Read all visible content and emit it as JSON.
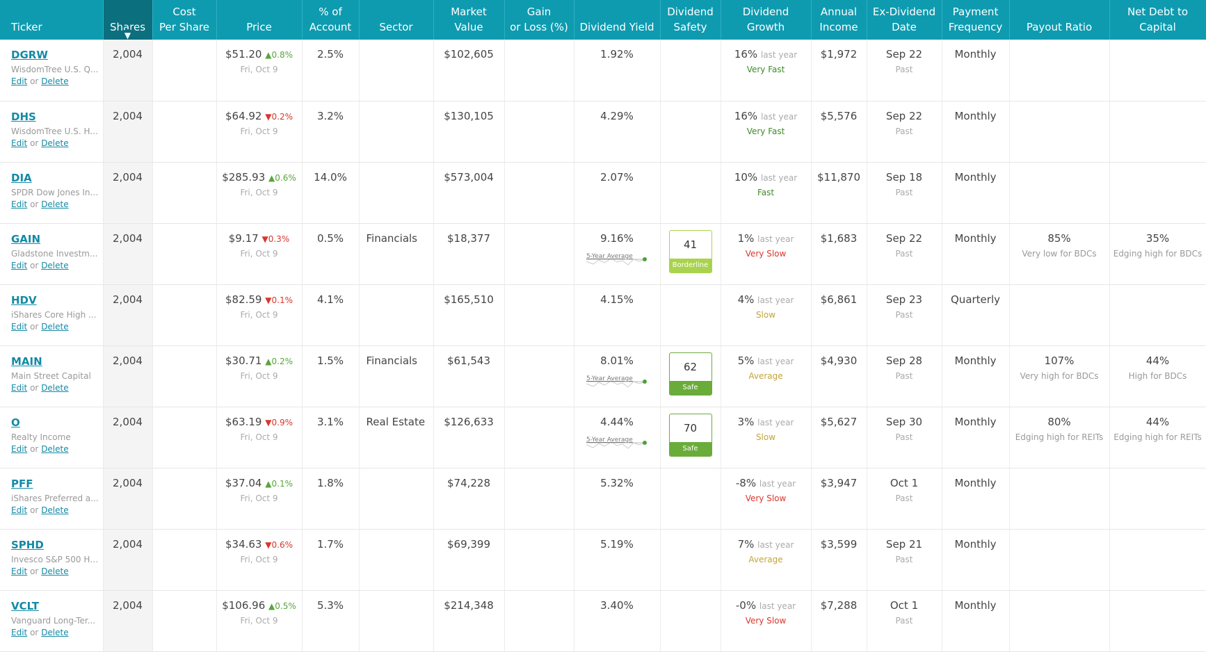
{
  "columns": [
    {
      "key": "ticker",
      "label": "Ticker"
    },
    {
      "key": "shares",
      "label": "Shares"
    },
    {
      "key": "cost",
      "label_lines": [
        "Cost",
        "Per Share"
      ]
    },
    {
      "key": "price",
      "label": "Price"
    },
    {
      "key": "pct",
      "label_lines": [
        "% of",
        "Account"
      ]
    },
    {
      "key": "sector",
      "label": "Sector"
    },
    {
      "key": "mv",
      "label_lines": [
        "Market",
        "Value"
      ]
    },
    {
      "key": "gain",
      "label_lines": [
        "Gain",
        "or Loss (%)"
      ]
    },
    {
      "key": "yield",
      "label": "Dividend Yield"
    },
    {
      "key": "safety",
      "label_lines": [
        "Dividend",
        "Safety"
      ]
    },
    {
      "key": "growth",
      "label_lines": [
        "Dividend",
        "Growth"
      ]
    },
    {
      "key": "income",
      "label_lines": [
        "Annual",
        "Income"
      ]
    },
    {
      "key": "exdiv",
      "label_lines": [
        "Ex-Dividend",
        "Date"
      ]
    },
    {
      "key": "freq",
      "label_lines": [
        "Payment",
        "Frequency"
      ]
    },
    {
      "key": "payout",
      "label": "Payout Ratio"
    },
    {
      "key": "debt",
      "label_lines": [
        "Net Debt to",
        "Capital"
      ]
    }
  ],
  "labels": {
    "edit": "Edit",
    "or": "or",
    "delete": "Delete",
    "last_year": "last year",
    "five_year_avg": "5-Year Average",
    "sort_arrow": "▼"
  },
  "colors": {
    "header": "#0e9bb0",
    "header_sorted": "#0b6f7e",
    "link": "#138aa6",
    "up": "#56a63b",
    "down": "#d9362c"
  },
  "rows": [
    {
      "ticker": "DGRW",
      "name": "WisdomTree U.S. Q...",
      "shares": "2,004",
      "price": "$51.20",
      "change": "0.8%",
      "dir": "up",
      "price_date": "Fri, Oct 9",
      "pct": "2.5%",
      "sector": "",
      "mv": "$102,605",
      "yield": "1.92%",
      "safety": null,
      "growth": "16%",
      "growth_rate": "Very Fast",
      "growth_class": "very-fast",
      "income": "$1,972",
      "exdiv": "Sep 22",
      "exdiv_status": "Past",
      "freq": "Monthly",
      "payout": "",
      "payout_note": "",
      "debt": "",
      "debt_note": ""
    },
    {
      "ticker": "DHS",
      "name": "WisdomTree U.S. H...",
      "shares": "2,004",
      "price": "$64.92",
      "change": "0.2%",
      "dir": "down",
      "price_date": "Fri, Oct 9",
      "pct": "3.2%",
      "sector": "",
      "mv": "$130,105",
      "yield": "4.29%",
      "safety": null,
      "growth": "16%",
      "growth_rate": "Very Fast",
      "growth_class": "very-fast",
      "income": "$5,576",
      "exdiv": "Sep 22",
      "exdiv_status": "Past",
      "freq": "Monthly",
      "payout": "",
      "payout_note": "",
      "debt": "",
      "debt_note": ""
    },
    {
      "ticker": "DIA",
      "name": "SPDR Dow Jones In...",
      "shares": "2,004",
      "price": "$285.93",
      "change": "0.6%",
      "dir": "up",
      "price_date": "Fri, Oct 9",
      "pct": "14.0%",
      "sector": "",
      "mv": "$573,004",
      "yield": "2.07%",
      "safety": null,
      "growth": "10%",
      "growth_rate": "Fast",
      "growth_class": "fast",
      "income": "$11,870",
      "exdiv": "Sep 18",
      "exdiv_status": "Past",
      "freq": "Monthly",
      "payout": "",
      "payout_note": "",
      "debt": "",
      "debt_note": ""
    },
    {
      "ticker": "GAIN",
      "name": "Gladstone Investm...",
      "shares": "2,004",
      "price": "$9.17",
      "change": "0.3%",
      "dir": "down",
      "price_date": "Fri, Oct 9",
      "pct": "0.5%",
      "sector": "Financials",
      "mv": "$18,377",
      "yield": "9.16%",
      "spark": true,
      "safety": {
        "score": "41",
        "label": "Borderline",
        "cls": "borderline"
      },
      "growth": "1%",
      "growth_rate": "Very Slow",
      "growth_class": "very-slow",
      "income": "$1,683",
      "exdiv": "Sep 22",
      "exdiv_status": "Past",
      "freq": "Monthly",
      "payout": "85%",
      "payout_note": "Very low for BDCs",
      "debt": "35%",
      "debt_note": "Edging high for BDCs"
    },
    {
      "ticker": "HDV",
      "name": "iShares Core High ...",
      "shares": "2,004",
      "price": "$82.59",
      "change": "0.1%",
      "dir": "down",
      "price_date": "Fri, Oct 9",
      "pct": "4.1%",
      "sector": "",
      "mv": "$165,510",
      "yield": "4.15%",
      "safety": null,
      "growth": "4%",
      "growth_rate": "Slow",
      "growth_class": "slow",
      "income": "$6,861",
      "exdiv": "Sep 23",
      "exdiv_status": "Past",
      "freq": "Quarterly",
      "payout": "",
      "payout_note": "",
      "debt": "",
      "debt_note": ""
    },
    {
      "ticker": "MAIN",
      "name": "Main Street Capital",
      "shares": "2,004",
      "price": "$30.71",
      "change": "0.2%",
      "dir": "up",
      "price_date": "Fri, Oct 9",
      "pct": "1.5%",
      "sector": "Financials",
      "mv": "$61,543",
      "yield": "8.01%",
      "spark": true,
      "safety": {
        "score": "62",
        "label": "Safe",
        "cls": "safe"
      },
      "growth": "5%",
      "growth_rate": "Average",
      "growth_class": "average",
      "income": "$4,930",
      "exdiv": "Sep 28",
      "exdiv_status": "Past",
      "freq": "Monthly",
      "payout": "107%",
      "payout_note": "Very high for BDCs",
      "debt": "44%",
      "debt_note": "High for BDCs"
    },
    {
      "ticker": "O",
      "name": "Realty Income",
      "shares": "2,004",
      "price": "$63.19",
      "change": "0.9%",
      "dir": "down",
      "price_date": "Fri, Oct 9",
      "pct": "3.1%",
      "sector": "Real Estate",
      "mv": "$126,633",
      "yield": "4.44%",
      "spark": true,
      "safety": {
        "score": "70",
        "label": "Safe",
        "cls": "safe"
      },
      "growth": "3%",
      "growth_rate": "Slow",
      "growth_class": "slow",
      "income": "$5,627",
      "exdiv": "Sep 30",
      "exdiv_status": "Past",
      "freq": "Monthly",
      "payout": "80%",
      "payout_note": "Edging high for REITs",
      "debt": "44%",
      "debt_note": "Edging high for REITs"
    },
    {
      "ticker": "PFF",
      "name": "iShares Preferred a...",
      "shares": "2,004",
      "price": "$37.04",
      "change": "0.1%",
      "dir": "up",
      "price_date": "Fri, Oct 9",
      "pct": "1.8%",
      "sector": "",
      "mv": "$74,228",
      "yield": "5.32%",
      "safety": null,
      "growth": "-8%",
      "growth_rate": "Very Slow",
      "growth_class": "very-slow",
      "income": "$3,947",
      "exdiv": "Oct 1",
      "exdiv_status": "Past",
      "freq": "Monthly",
      "payout": "",
      "payout_note": "",
      "debt": "",
      "debt_note": ""
    },
    {
      "ticker": "SPHD",
      "name": "Invesco S&P 500 Hi...",
      "shares": "2,004",
      "price": "$34.63",
      "change": "0.6%",
      "dir": "down",
      "price_date": "Fri, Oct 9",
      "pct": "1.7%",
      "sector": "",
      "mv": "$69,399",
      "yield": "5.19%",
      "safety": null,
      "growth": "7%",
      "growth_rate": "Average",
      "growth_class": "average",
      "income": "$3,599",
      "exdiv": "Sep 21",
      "exdiv_status": "Past",
      "freq": "Monthly",
      "payout": "",
      "payout_note": "",
      "debt": "",
      "debt_note": ""
    },
    {
      "ticker": "VCLT",
      "name": "Vanguard Long-Ter...",
      "shares": "2,004",
      "price": "$106.96",
      "change": "0.5%",
      "dir": "up",
      "price_date": "Fri, Oct 9",
      "pct": "5.3%",
      "sector": "",
      "mv": "$214,348",
      "yield": "3.40%",
      "safety": null,
      "growth": "-0%",
      "growth_rate": "Very Slow",
      "growth_class": "very-slow",
      "income": "$7,288",
      "exdiv": "Oct 1",
      "exdiv_status": "Past",
      "freq": "Monthly",
      "payout": "",
      "payout_note": "",
      "debt": "",
      "debt_note": ""
    }
  ]
}
